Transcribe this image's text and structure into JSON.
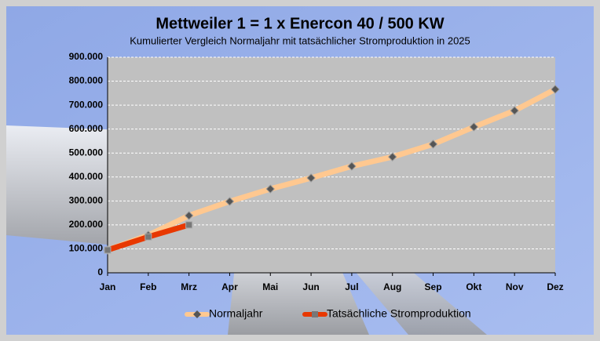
{
  "chart_data": {
    "type": "line",
    "title": "Mettweiler 1 = 1 x Enercon 40 / 500 KW",
    "subtitle": "Kumulierter Vergleich Normaljahr mit tatsächlicher Stromproduktion in 2025",
    "categories": [
      "Jan",
      "Feb",
      "Mrz",
      "Apr",
      "Mai",
      "Jun",
      "Jul",
      "Aug",
      "Sep",
      "Okt",
      "Nov",
      "Dez"
    ],
    "series": [
      {
        "name": "Normaljahr",
        "color": "#ffc890",
        "values": [
          95000,
          157000,
          239000,
          298000,
          350000,
          396000,
          445000,
          484000,
          537000,
          609000,
          677000,
          766000
        ]
      },
      {
        "name": "Tatsächliche Stromproduktion",
        "color": "#e83800",
        "values": [
          95000,
          150000,
          200000,
          null,
          null,
          null,
          null,
          null,
          null,
          null,
          null,
          null
        ]
      }
    ],
    "ylim": [
      0,
      900000
    ],
    "yticks": [
      {
        "value": 0,
        "label": "0"
      },
      {
        "value": 100000,
        "label": "100.000"
      },
      {
        "value": 200000,
        "label": "200.000"
      },
      {
        "value": 300000,
        "label": "300.000"
      },
      {
        "value": 400000,
        "label": "400.000"
      },
      {
        "value": 500000,
        "label": "500.000"
      },
      {
        "value": 600000,
        "label": "600.000"
      },
      {
        "value": 700000,
        "label": "700.000"
      },
      {
        "value": 800000,
        "label": "800.000"
      },
      {
        "value": 900000,
        "label": "900.000"
      }
    ],
    "grid": true
  }
}
